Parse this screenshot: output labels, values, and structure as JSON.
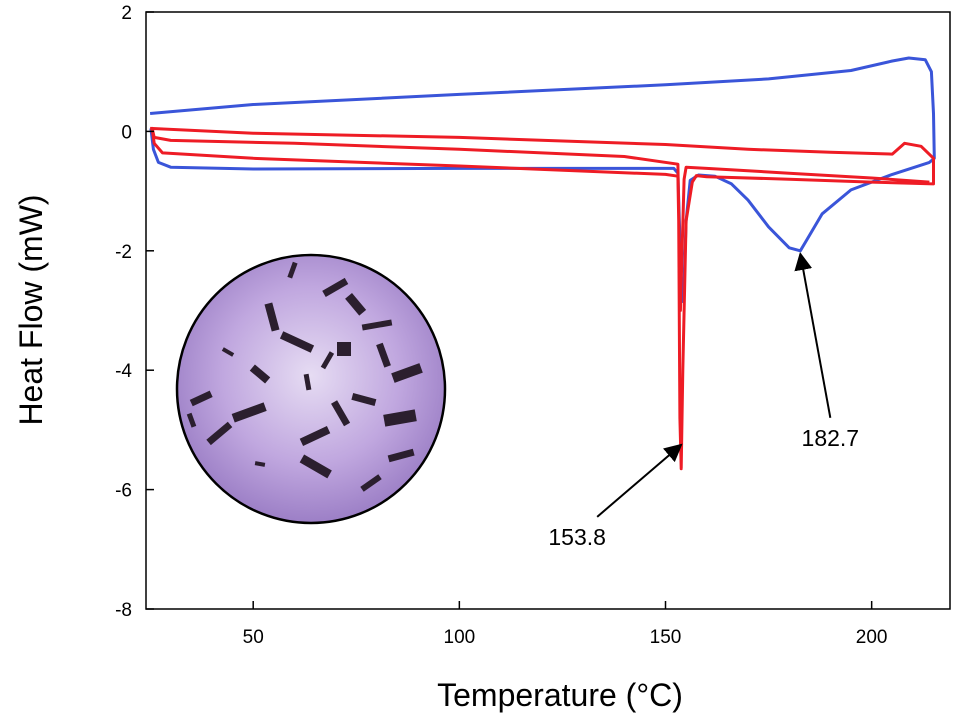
{
  "chart_data": {
    "type": "line",
    "title": "",
    "xlabel": "Temperature (°C)",
    "ylabel": "Heat Flow (mW)",
    "xlim": [
      24,
      219
    ],
    "ylim": [
      -8,
      2
    ],
    "x_ticks": [
      {
        "value": 50,
        "label": "50"
      },
      {
        "value": 100,
        "label": "100"
      },
      {
        "value": 150,
        "label": "150"
      },
      {
        "value": 200,
        "label": "200"
      }
    ],
    "y_ticks": [
      {
        "value": 2,
        "label": "2"
      },
      {
        "value": 0,
        "label": "0"
      },
      {
        "value": -2,
        "label": "-2"
      },
      {
        "value": -4,
        "label": "-4"
      },
      {
        "value": -6,
        "label": "-6"
      },
      {
        "value": -8,
        "label": "-8"
      }
    ],
    "grid": false,
    "series": [
      {
        "color": "#3a55d9",
        "points": [
          [
            25,
            0.3
          ],
          [
            50,
            0.45
          ],
          [
            100,
            0.62
          ],
          [
            150,
            0.78
          ],
          [
            175,
            0.88
          ],
          [
            195,
            1.02
          ],
          [
            205,
            1.18
          ],
          [
            209,
            1.23
          ],
          [
            213,
            1.2
          ],
          [
            214.5,
            1.0
          ],
          [
            215,
            0.3
          ],
          [
            215.2,
            -0.45
          ],
          [
            214,
            -0.52
          ],
          [
            205,
            -0.72
          ],
          [
            195,
            -0.98
          ],
          [
            188,
            -1.38
          ],
          [
            184,
            -1.85
          ],
          [
            182.7,
            -2.0
          ],
          [
            180,
            -1.95
          ],
          [
            175,
            -1.6
          ],
          [
            170,
            -1.15
          ],
          [
            166,
            -0.88
          ],
          [
            162,
            -0.75
          ],
          [
            158,
            -0.73
          ],
          [
            156,
            -0.82
          ],
          [
            155,
            -1.5
          ],
          [
            154.5,
            -2.5
          ],
          [
            154,
            -2.85
          ],
          [
            153.5,
            -1.8
          ],
          [
            153,
            -0.7
          ],
          [
            152,
            -0.62
          ],
          [
            140,
            -0.62
          ],
          [
            100,
            -0.62
          ],
          [
            50,
            -0.63
          ],
          [
            30,
            -0.6
          ],
          [
            27,
            -0.52
          ],
          [
            25.8,
            -0.3
          ],
          [
            25.2,
            0.05
          ]
        ]
      },
      {
        "color": "#ee1c25",
        "points": [
          [
            25,
            0.05
          ],
          [
            50,
            -0.03
          ],
          [
            100,
            -0.1
          ],
          [
            150,
            -0.22
          ],
          [
            170,
            -0.3
          ],
          [
            190,
            -0.35
          ],
          [
            205,
            -0.38
          ],
          [
            208,
            -0.2
          ],
          [
            212,
            -0.25
          ],
          [
            215,
            -0.45
          ],
          [
            215,
            -0.88
          ],
          [
            200,
            -0.85
          ],
          [
            180,
            -0.8
          ],
          [
            165,
            -0.77
          ],
          [
            160,
            -0.76
          ],
          [
            157.5,
            -0.74
          ],
          [
            156.5,
            -0.85
          ],
          [
            155,
            -1.5
          ],
          [
            154.2,
            -4.0
          ],
          [
            153.8,
            -5.65
          ],
          [
            153.5,
            -4.8
          ],
          [
            153.2,
            -1.5
          ],
          [
            153,
            -0.75
          ],
          [
            150,
            -0.72
          ],
          [
            100,
            -0.58
          ],
          [
            50,
            -0.45
          ],
          [
            28,
            -0.36
          ],
          [
            26,
            -0.2
          ],
          [
            25.5,
            0.05
          ],
          [
            26,
            -0.1
          ],
          [
            30,
            -0.15
          ],
          [
            60,
            -0.2
          ],
          [
            100,
            -0.3
          ],
          [
            140,
            -0.42
          ],
          [
            153,
            -0.55
          ],
          [
            153.6,
            -3.0
          ],
          [
            154.5,
            -0.8
          ],
          [
            155,
            -0.6
          ],
          [
            160,
            -0.62
          ],
          [
            180,
            -0.7
          ],
          [
            200,
            -0.78
          ],
          [
            214,
            -0.85
          ]
        ]
      }
    ],
    "annotations": [
      {
        "text": "153.8",
        "point": [
          153.8,
          -5.25
        ]
      },
      {
        "text": "182.7",
        "point": [
          182.7,
          -2.05
        ]
      }
    ],
    "inset": {
      "description_icon": "micrograph-crystals-icon",
      "tint": "#b79bd9"
    }
  }
}
